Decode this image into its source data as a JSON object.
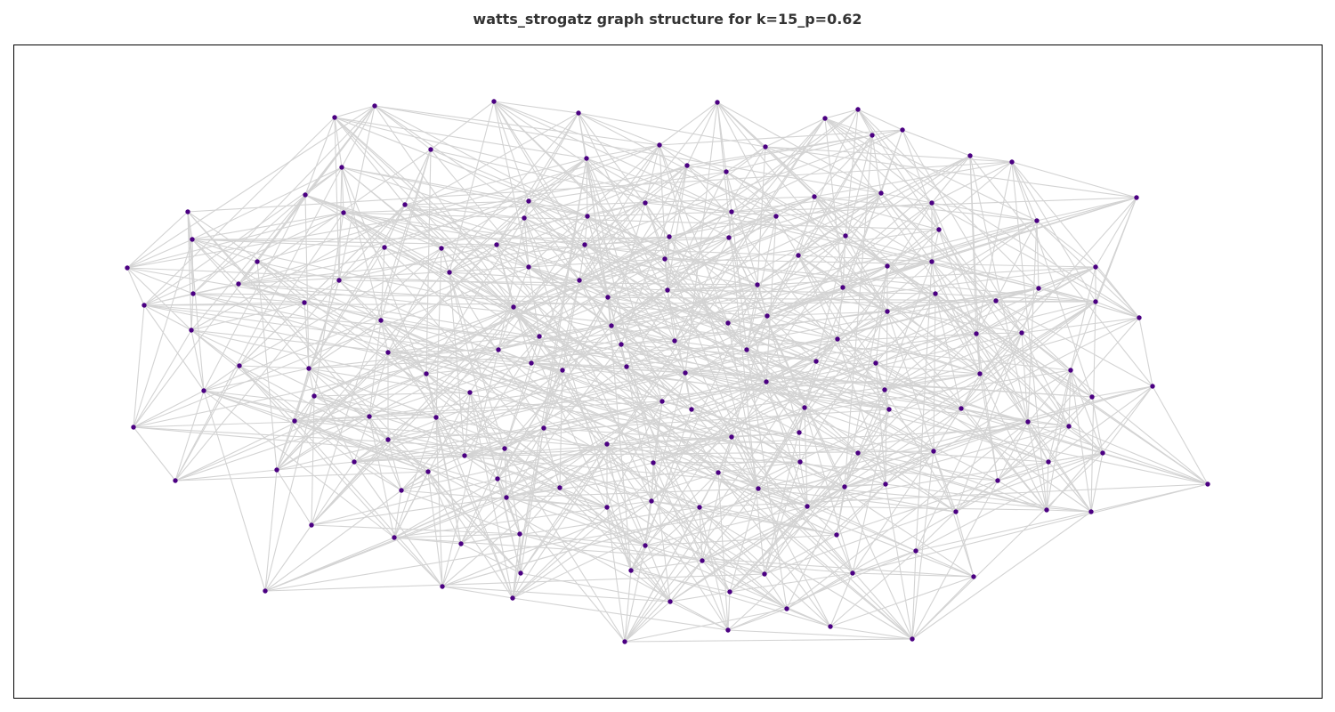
{
  "title": "watts_strogatz graph structure for k=15_p=0.62",
  "colors": {
    "node": "#4b0082",
    "edge": "#d3d3d3",
    "frame": "#000000",
    "background": "#ffffff"
  },
  "graph": {
    "k": 15,
    "p": 0.62
  }
}
